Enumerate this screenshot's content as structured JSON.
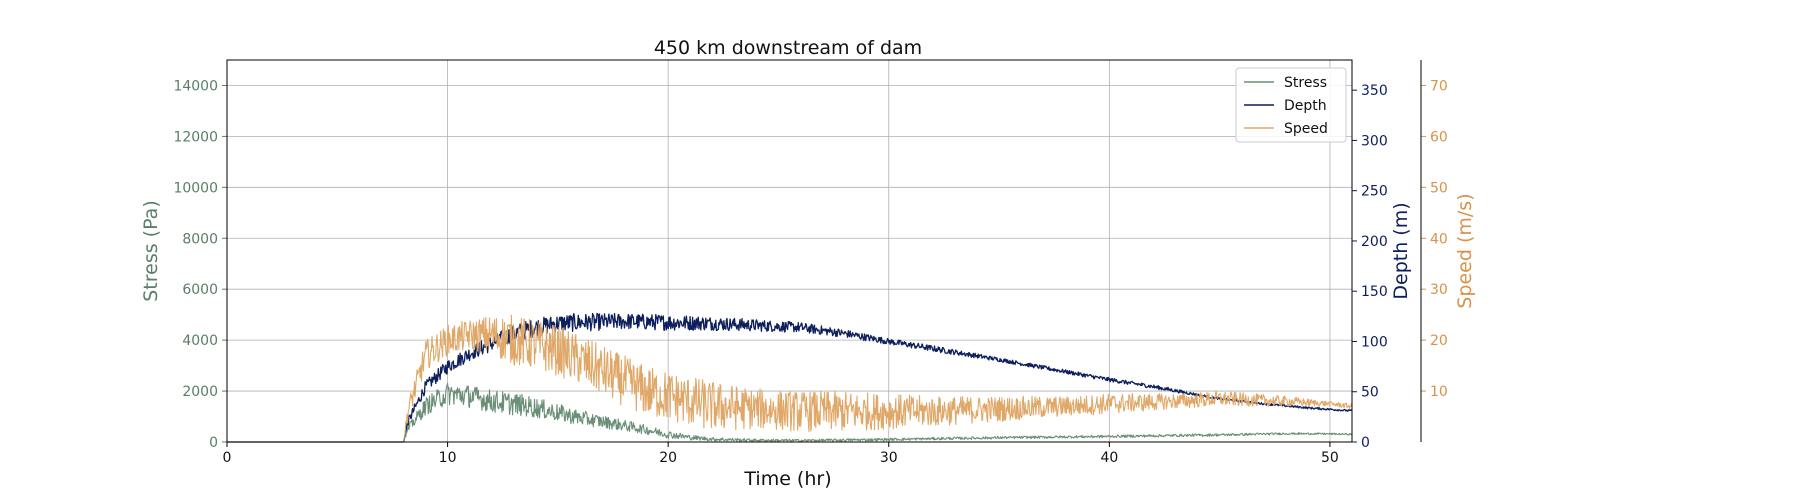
{
  "chart_data": {
    "type": "line",
    "title": "450 km downstream of dam",
    "xlabel": "Time (hr)",
    "xlim": [
      0,
      51
    ],
    "xticks": [
      0,
      10,
      20,
      30,
      40,
      50
    ],
    "grid": true,
    "legend_position": "top-right",
    "axes": [
      {
        "id": "stress",
        "label": "Stress (Pa)",
        "side": "left",
        "color": "#5a7f66",
        "ylim": [
          0,
          15000
        ],
        "ticks": [
          0,
          2000,
          4000,
          6000,
          8000,
          10000,
          12000,
          14000
        ]
      },
      {
        "id": "depth",
        "label": "Depth (m)",
        "side": "right",
        "color": "#0d1f5c",
        "ylim": [
          0,
          380
        ],
        "ticks": [
          0,
          50,
          100,
          150,
          200,
          250,
          300,
          350
        ]
      },
      {
        "id": "speed",
        "label": "Speed (m/s)",
        "side": "right-outer",
        "color": "#d9924a",
        "ylim": [
          0,
          75
        ],
        "ticks": [
          10,
          20,
          30,
          40,
          50,
          60,
          70
        ]
      }
    ],
    "series": [
      {
        "name": "Stress",
        "axis": "stress",
        "color": "#6a8f76",
        "x": [
          0,
          8,
          8.2,
          9,
          10,
          11,
          12,
          13,
          14,
          15,
          16,
          17,
          18,
          19,
          20,
          21,
          22,
          24,
          26,
          28,
          30,
          32,
          35,
          40,
          45,
          48,
          50,
          51
        ],
        "y": [
          0,
          0,
          500,
          1400,
          1900,
          1800,
          1600,
          1500,
          1350,
          1150,
          950,
          800,
          650,
          480,
          300,
          180,
          110,
          70,
          60,
          80,
          100,
          130,
          170,
          220,
          280,
          330,
          320,
          300
        ],
        "noise": [
          0,
          0,
          150,
          350,
          450,
          450,
          450,
          450,
          400,
          350,
          300,
          250,
          220,
          180,
          150,
          100,
          70,
          50,
          50,
          50,
          50,
          50,
          50,
          50,
          50,
          40,
          30,
          30
        ]
      },
      {
        "name": "Depth",
        "axis": "depth",
        "color": "#0d1f5c",
        "x": [
          0,
          8,
          8.2,
          9,
          10,
          11,
          12,
          13,
          14,
          15,
          16,
          18,
          20,
          22,
          24,
          26,
          28,
          30,
          32,
          35,
          38,
          40,
          42,
          45,
          47,
          49,
          51
        ],
        "y": [
          0,
          0,
          20,
          55,
          75,
          88,
          98,
          108,
          114,
          118,
          119,
          120,
          119,
          118,
          116,
          114,
          108,
          100,
          93,
          82,
          70,
          62,
          55,
          43,
          38,
          34,
          31
        ],
        "noise": [
          0,
          0,
          4,
          6,
          7,
          7,
          8,
          9,
          9,
          9,
          9,
          8,
          8,
          7,
          6,
          5,
          4,
          3,
          3,
          2,
          2,
          2,
          2,
          1,
          1,
          1,
          1
        ]
      },
      {
        "name": "Speed",
        "axis": "speed",
        "color": "#e0a868",
        "x": [
          0,
          8,
          8.2,
          9,
          10,
          11,
          12,
          13,
          14,
          15,
          16,
          17,
          18,
          19,
          20,
          21,
          22,
          24,
          26,
          28,
          30,
          32,
          35,
          38,
          40,
          43,
          45,
          48,
          50,
          51
        ],
        "y": [
          0,
          0,
          6,
          17,
          20,
          21,
          21,
          20,
          19,
          18,
          16,
          14,
          12,
          10,
          9,
          8,
          7,
          6.5,
          6,
          6,
          6,
          6,
          6.5,
          7,
          7.5,
          8,
          8.5,
          8,
          7.5,
          7
        ],
        "noise": [
          0,
          0,
          2,
          3,
          3,
          3,
          4,
          5,
          5,
          5,
          5,
          5,
          5,
          5,
          5,
          5,
          5,
          4,
          4,
          4,
          3.5,
          3,
          2.5,
          2,
          2,
          1.5,
          1.5,
          1,
          0.5,
          0.5
        ]
      }
    ]
  }
}
